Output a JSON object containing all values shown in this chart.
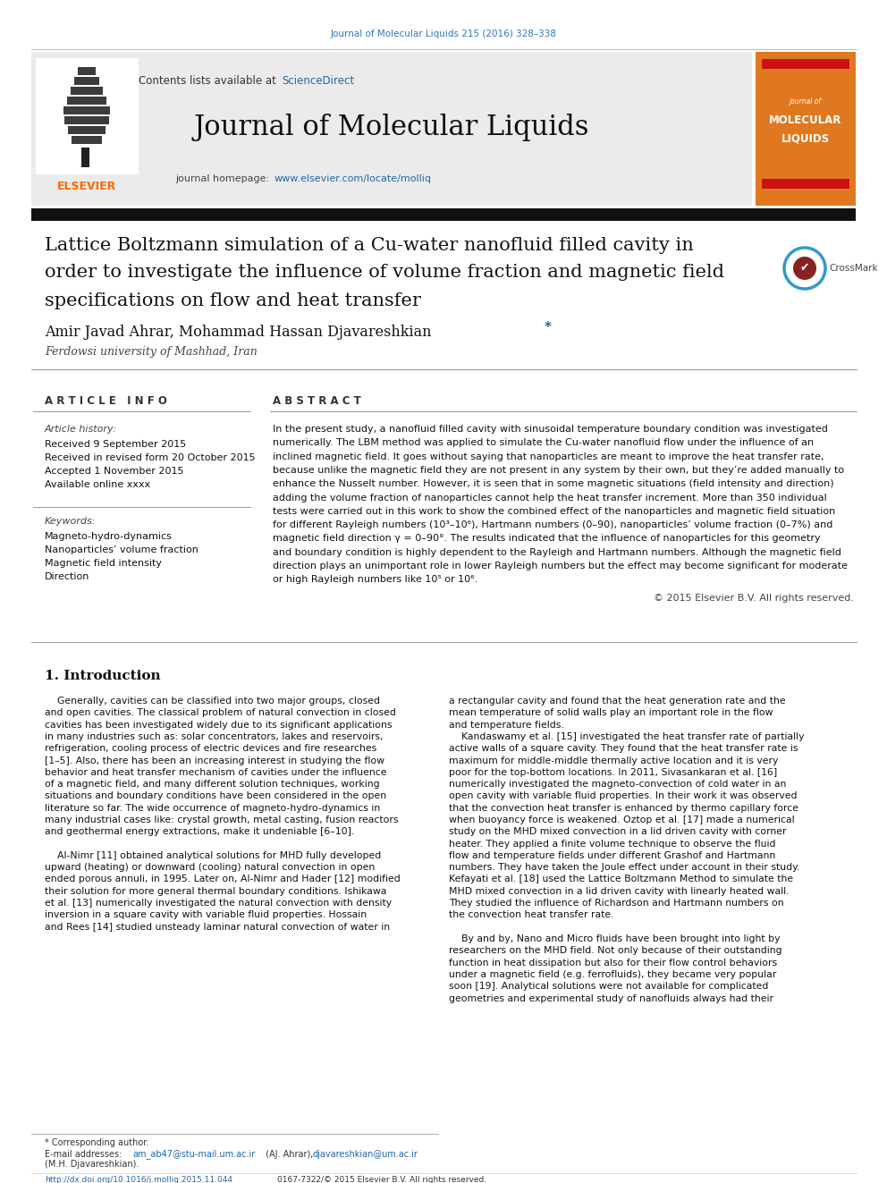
{
  "page_width": 9.92,
  "page_height": 13.23,
  "bg_color": "#ffffff",
  "journal_ref": "Journal of Molecular Liquids 215 (2016) 328–338",
  "journal_ref_color": "#3377bb",
  "header_bg": "#ebebeb",
  "journal_title": "Journal of Molecular Liquids",
  "journal_homepage_url": "www.elsevier.com/locate/molliq",
  "link_color": "#2266aa",
  "elsevier_color": "#FF6600",
  "paper_title_line1": "Lattice Boltzmann simulation of a Cu-water nanofluid filled cavity in",
  "paper_title_line2": "order to investigate the influence of volume fraction and magnetic field",
  "paper_title_line3": "specifications on flow and heat transfer",
  "authors": "Amir Javad Ahrar, Mohammad Hassan Djavareshkian",
  "affiliation": "Ferdowsi university of Mashhad, Iran",
  "article_info_header": "A R T I C L E   I N F O",
  "abstract_header": "A B S T R A C T",
  "article_history_label": "Article history:",
  "received_date": "Received 9 September 2015",
  "revised_date": "Received in revised form 20 October 2015",
  "accepted_date": "Accepted 1 November 2015",
  "available_online": "Available online xxxx",
  "keywords_label": "Keywords:",
  "keyword1": "Magneto-hydro-dynamics",
  "keyword2": "Nanoparticles’ volume fraction",
  "keyword3": "Magnetic field intensity",
  "keyword4": "Direction",
  "copyright": "© 2015 Elsevier B.V. All rights reserved.",
  "section1_title": "1. Introduction",
  "footer_doi": "http://dx.doi.org/10.1016/j.molliq.2015.11.044",
  "footer_issn": "0167-7322/© 2015 Elsevier B.V. All rights reserved.",
  "orange_color": "#E07820",
  "thick_bar_color": "#111111",
  "sciencedirect_color": "#2266aa",
  "red_accent": "#cc1111",
  "abstract_lines": [
    "In the present study, a nanofluid filled cavity with sinusoidal temperature boundary condition was investigated",
    "numerically. The LBM method was applied to simulate the Cu-water nanofluid flow under the influence of an",
    "inclined magnetic field. It goes without saying that nanoparticles are meant to improve the heat transfer rate,",
    "because unlike the magnetic field they are not present in any system by their own, but they’re added manually to",
    "enhance the Nusselt number. However, it is seen that in some magnetic situations (field intensity and direction)",
    "adding the volume fraction of nanoparticles cannot help the heat transfer increment. More than 350 individual",
    "tests were carried out in this work to show the combined effect of the nanoparticles and magnetic field situation",
    "for different Rayleigh numbers (10³–10⁶), Hartmann numbers (0–90), nanoparticles’ volume fraction (0–7%) and",
    "magnetic field direction γ = 0–90°. The results indicated that the influence of nanoparticles for this geometry",
    "and boundary condition is highly dependent to the Rayleigh and Hartmann numbers. Although the magnetic field",
    "direction plays an unimportant role in lower Rayleigh numbers but the effect may become significant for moderate",
    "or high Rayleigh numbers like 10⁵ or 10⁶."
  ],
  "col1_lines": [
    "    Generally, cavities can be classified into two major groups, closed",
    "and open cavities. The classical problem of natural convection in closed",
    "cavities has been investigated widely due to its significant applications",
    "in many industries such as: solar concentrators, lakes and reservoirs,",
    "refrigeration, cooling process of electric devices and fire researches",
    "[1–5]. Also, there has been an increasing interest in studying the flow",
    "behavior and heat transfer mechanism of cavities under the influence",
    "of a magnetic field, and many different solution techniques, working",
    "situations and boundary conditions have been considered in the open",
    "literature so far. The wide occurrence of magneto-hydro-dynamics in",
    "many industrial cases like: crystal growth, metal casting, fusion reactors",
    "and geothermal energy extractions, make it undeniable [6–10].",
    "",
    "    Al-Nimr [11] obtained analytical solutions for MHD fully developed",
    "upward (heating) or downward (cooling) natural convection in open",
    "ended porous annuli, in 1995. Later on, Al-Nimr and Hader [12] modified",
    "their solution for more general thermal boundary conditions. Ishikawa",
    "et al. [13] numerically investigated the natural convection with density",
    "inversion in a square cavity with variable fluid properties. Hossain",
    "and Rees [14] studied unsteady laminar natural convection of water in"
  ],
  "col2_lines": [
    "a rectangular cavity and found that the heat generation rate and the",
    "mean temperature of solid walls play an important role in the flow",
    "and temperature fields.",
    "    Kandaswamy et al. [15] investigated the heat transfer rate of partially",
    "active walls of a square cavity. They found that the heat transfer rate is",
    "maximum for middle-middle thermally active location and it is very",
    "poor for the top-bottom locations. In 2011, Sivasankaran et al. [16]",
    "numerically investigated the magneto-convection of cold water in an",
    "open cavity with variable fluid properties. In their work it was observed",
    "that the convection heat transfer is enhanced by thermo capillary force",
    "when buoyancy force is weakened. Oztop et al. [17] made a numerical",
    "study on the MHD mixed convection in a lid driven cavity with corner",
    "heater. They applied a finite volume technique to observe the fluid",
    "flow and temperature fields under different Grashof and Hartmann",
    "numbers. They have taken the Joule effect under account in their study.",
    "Kefayati et al. [18] used the Lattice Boltzmann Method to simulate the",
    "MHD mixed convection in a lid driven cavity with linearly heated wall.",
    "They studied the influence of Richardson and Hartmann numbers on",
    "the convection heat transfer rate.",
    "",
    "    By and by, Nano and Micro fluids have been brought into light by",
    "researchers on the MHD field. Not only because of their outstanding",
    "function in heat dissipation but also for their flow control behaviors",
    "under a magnetic field (e.g. ferrofluids), they became very popular",
    "soon [19]. Analytical solutions were not available for complicated",
    "geometries and experimental study of nanofluids always had their"
  ]
}
